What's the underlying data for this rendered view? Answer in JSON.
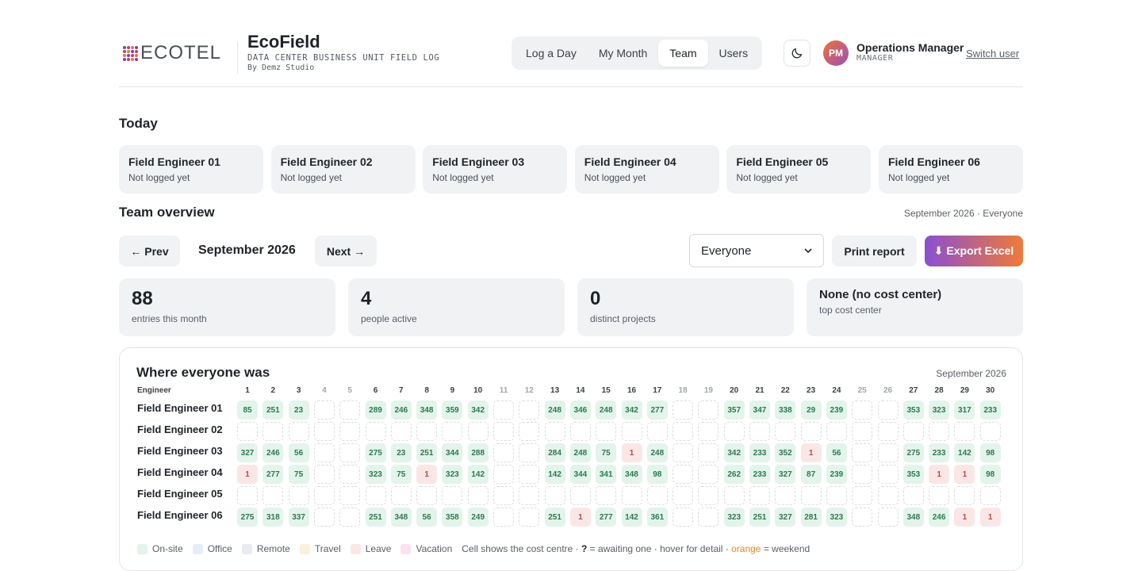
{
  "brand": {
    "logo_text": "ECOTEL",
    "title": "EcoField",
    "subtitle": "DATA CENTER BUSINESS UNIT FIELD LOG",
    "byline": "By Demz Studio"
  },
  "nav": {
    "tabs": [
      {
        "label": "Log a Day",
        "active": false
      },
      {
        "label": "My Month",
        "active": false
      },
      {
        "label": "Team",
        "active": true
      },
      {
        "label": "Users",
        "active": false
      }
    ]
  },
  "user": {
    "initials": "PM",
    "name": "Operations Manager",
    "role": "MANAGER",
    "switch_label": "Switch user"
  },
  "today": {
    "title": "Today",
    "cards": [
      {
        "name": "Field Engineer 01",
        "status": "Not logged yet"
      },
      {
        "name": "Field Engineer 02",
        "status": "Not logged yet"
      },
      {
        "name": "Field Engineer 03",
        "status": "Not logged yet"
      },
      {
        "name": "Field Engineer 04",
        "status": "Not logged yet"
      },
      {
        "name": "Field Engineer 05",
        "status": "Not logged yet"
      },
      {
        "name": "Field Engineer 06",
        "status": "Not logged yet"
      }
    ]
  },
  "overview": {
    "title": "Team overview",
    "meta": "September 2026 · Everyone",
    "prev_label": "← Prev",
    "next_label": "Next →",
    "month_label": "September 2026",
    "filter_value": "Everyone",
    "print_label": "Print report",
    "export_label": "⬇ Export Excel"
  },
  "stats": [
    {
      "value": "88",
      "label": "entries this month"
    },
    {
      "value": "4",
      "label": "people active"
    },
    {
      "value": "0",
      "label": "distinct projects"
    },
    {
      "value": "None (no cost center)",
      "label": "top cost center"
    }
  ],
  "matrix": {
    "title": "Where everyone was",
    "month": "September 2026",
    "engineer_header": "Engineer",
    "days": [
      1,
      2,
      3,
      4,
      5,
      6,
      7,
      8,
      9,
      10,
      11,
      12,
      13,
      14,
      15,
      16,
      17,
      18,
      19,
      20,
      21,
      22,
      23,
      24,
      25,
      26,
      27,
      28,
      29,
      30
    ],
    "weekend_days": [
      4,
      5,
      11,
      12,
      18,
      19,
      25,
      26
    ],
    "rows": [
      {
        "name": "Field Engineer 01",
        "cells": [
          "85",
          "251",
          "23",
          "",
          "",
          "289",
          "246",
          "348",
          "359",
          "342",
          "",
          "",
          "248",
          "346",
          "248",
          "342",
          "277",
          "",
          "",
          "357",
          "347",
          "338",
          "29",
          "239",
          "",
          "",
          "353",
          "323",
          "317",
          "233"
        ],
        "leave": []
      },
      {
        "name": "Field Engineer 02",
        "cells": [
          "",
          "",
          "",
          "",
          "",
          "",
          "",
          "",
          "",
          "",
          "",
          "",
          "",
          "",
          "",
          "",
          "",
          "",
          "",
          "",
          "",
          "",
          "",
          "",
          "",
          "",
          "",
          "",
          "",
          ""
        ],
        "leave": []
      },
      {
        "name": "Field Engineer 03",
        "cells": [
          "327",
          "246",
          "56",
          "",
          "",
          "275",
          "23",
          "251",
          "344",
          "288",
          "",
          "",
          "284",
          "248",
          "75",
          "1",
          "248",
          "",
          "",
          "342",
          "233",
          "352",
          "1",
          "56",
          "",
          "",
          "275",
          "233",
          "142",
          "98"
        ],
        "leave": [
          16,
          23
        ]
      },
      {
        "name": "Field Engineer 04",
        "cells": [
          "1",
          "277",
          "75",
          "",
          "",
          "323",
          "75",
          "1",
          "323",
          "142",
          "",
          "",
          "142",
          "344",
          "341",
          "348",
          "98",
          "",
          "",
          "262",
          "233",
          "327",
          "87",
          "239",
          "",
          "",
          "353",
          "1",
          "1",
          "98"
        ],
        "leave": [
          1,
          8,
          28,
          29
        ]
      },
      {
        "name": "Field Engineer 05",
        "cells": [
          "",
          "",
          "",
          "",
          "",
          "",
          "",
          "",
          "",
          "",
          "",
          "",
          "",
          "",
          "",
          "",
          "",
          "",
          "",
          "",
          "",
          "",
          "",
          "",
          "",
          "",
          "",
          "",
          "",
          ""
        ],
        "leave": []
      },
      {
        "name": "Field Engineer 06",
        "cells": [
          "275",
          "318",
          "337",
          "",
          "",
          "251",
          "348",
          "56",
          "358",
          "249",
          "",
          "",
          "251",
          "1",
          "277",
          "142",
          "361",
          "",
          "",
          "323",
          "251",
          "327",
          "281",
          "323",
          "",
          "",
          "348",
          "246",
          "1",
          "1"
        ],
        "leave": [
          14,
          29,
          30
        ]
      }
    ],
    "legend": [
      {
        "label": "On-site",
        "color": "#e3f4ea"
      },
      {
        "label": "Office",
        "color": "#e4eef9"
      },
      {
        "label": "Remote",
        "color": "#e9e9f0"
      },
      {
        "label": "Travel",
        "color": "#fbf0dc"
      },
      {
        "label": "Leave",
        "color": "#fbe6e6"
      },
      {
        "label": "Vacation",
        "color": "#f8e4f0"
      }
    ],
    "note_prefix": "Cell shows the cost centre · ",
    "note_q": "?",
    "note_mid": " = awaiting one · hover for detail · ",
    "note_orange": "orange",
    "note_suffix": " = weekend"
  },
  "colors": {
    "accent_gradient_start": "#8a4fd0",
    "accent_gradient_end": "#f07a38",
    "onsite": "#e3f4ea",
    "leave": "#fbe6e6"
  }
}
